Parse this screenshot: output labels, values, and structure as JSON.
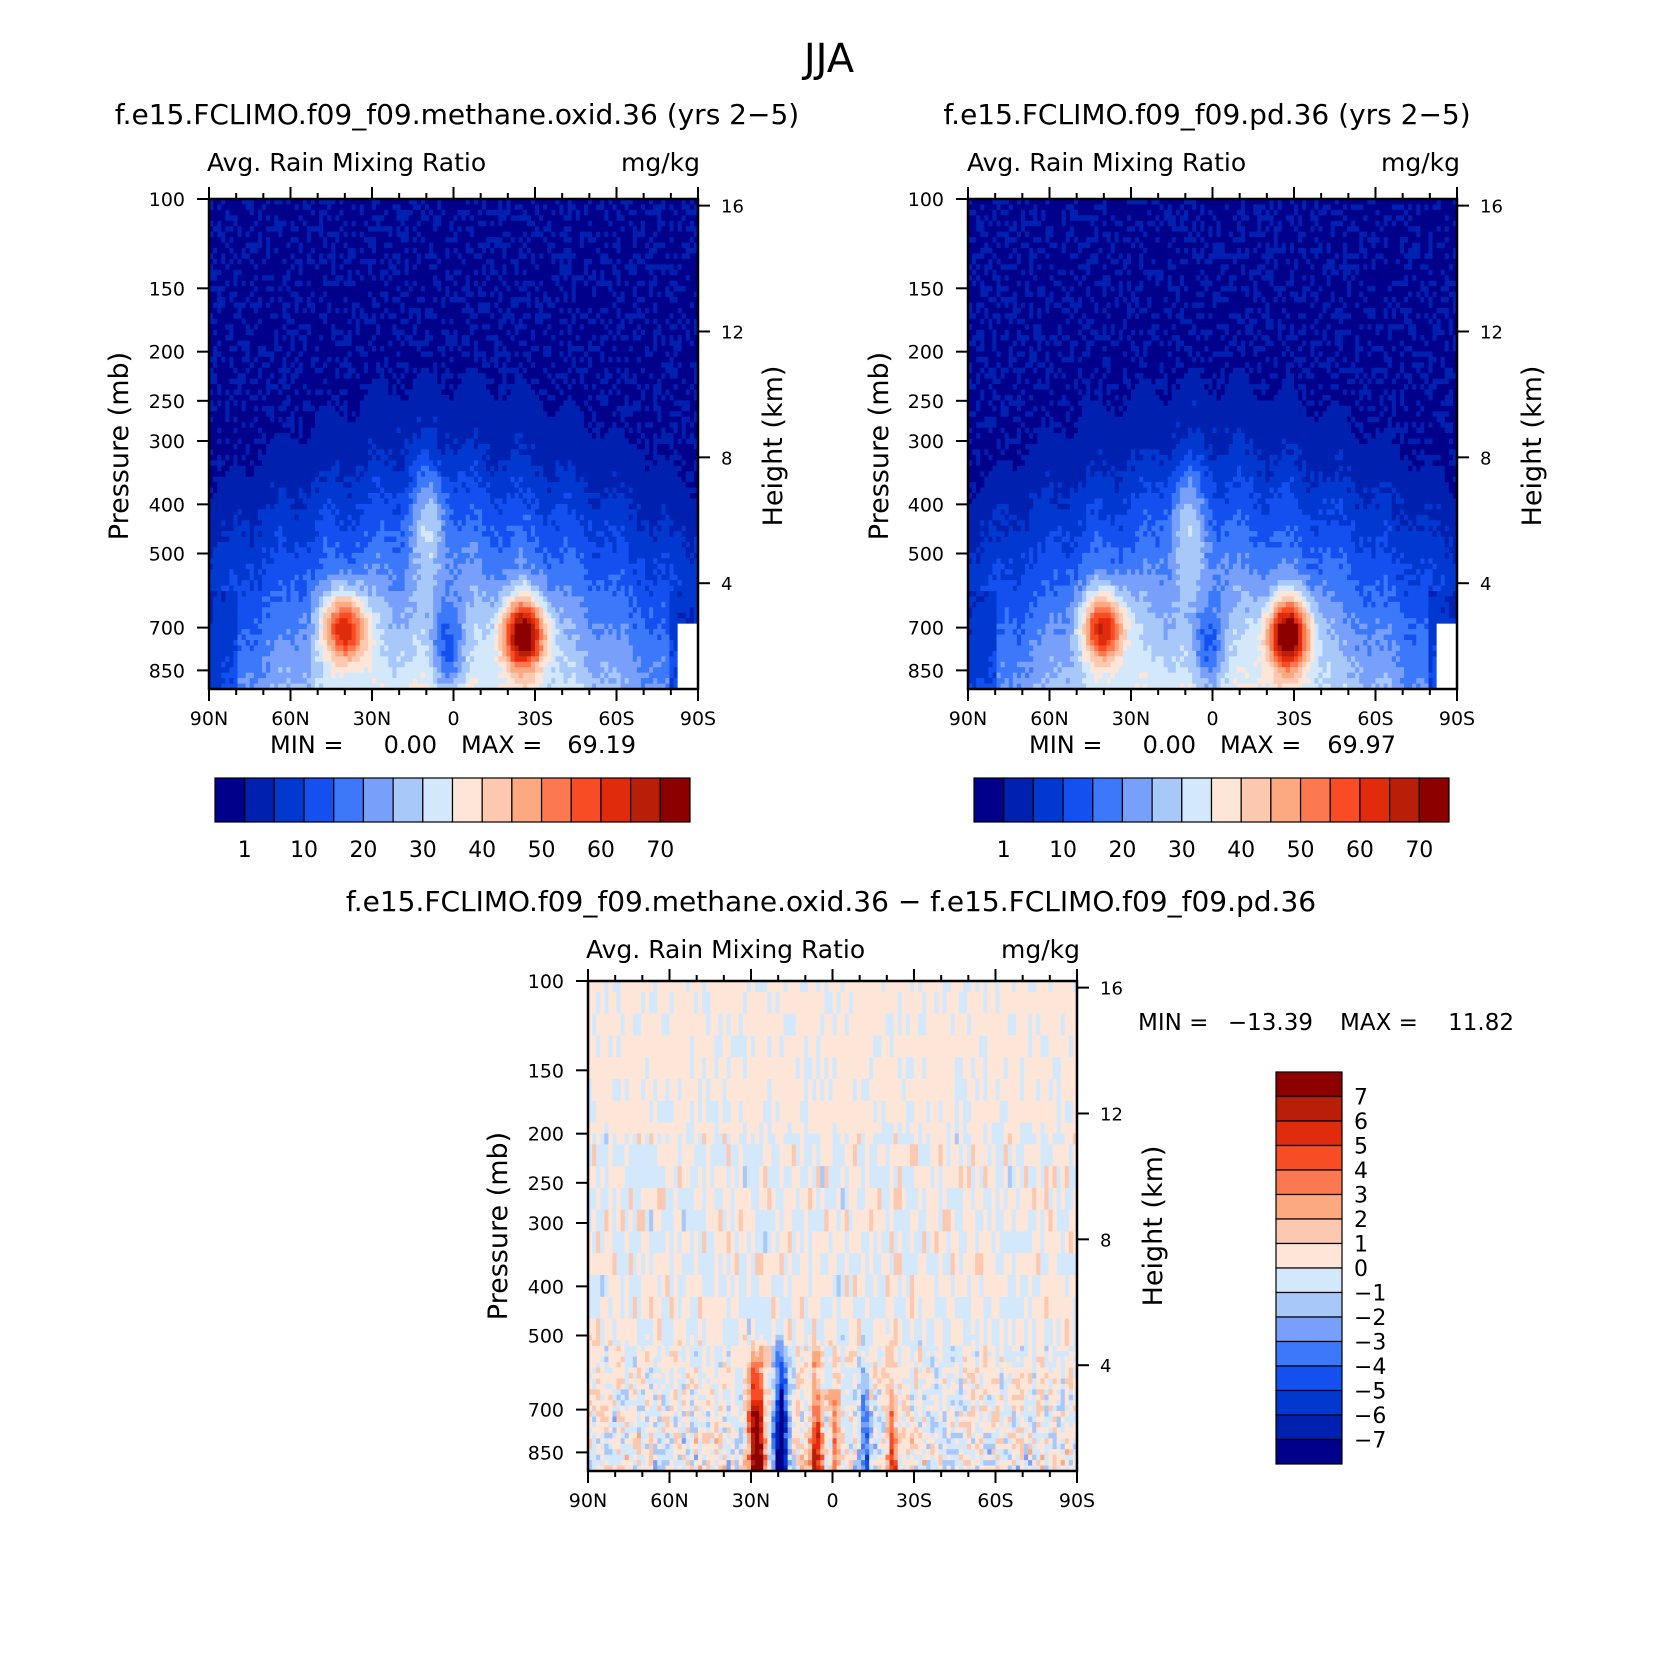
{
  "page": {
    "title": "JJA"
  },
  "colors": {
    "seq_scale": [
      "#00008a",
      "#0020b0",
      "#0038d0",
      "#1450f0",
      "#3c78fa",
      "#78a0fa",
      "#a8c8fa",
      "#d4e8fc",
      "#fde6d8",
      "#fcc8b0",
      "#fca880",
      "#fc7850",
      "#f84c24",
      "#e02c0c",
      "#b81e08",
      "#8c0000"
    ],
    "div_scale": [
      "#00008a",
      "#0020b0",
      "#0038d0",
      "#1450f0",
      "#3c78fa",
      "#78a0fa",
      "#a8c8fa",
      "#d4e8fc",
      "#fde6d8",
      "#fcc8b0",
      "#fca880",
      "#fc7850",
      "#f84c24",
      "#e02c0c",
      "#b81e08",
      "#8c0000"
    ]
  },
  "chart_data": [
    {
      "id": "panel1",
      "type": "heatmap",
      "title": "f.e15.FCLIMO.f09_f09.methane.oxid.36 (yrs 2−5)",
      "left_label": "Avg. Rain Mixing Ratio",
      "right_label": "mg/kg",
      "xlabel": "",
      "ylabel": "Pressure (mb)",
      "y2label": "Height (km)",
      "x_ticks": [
        "90N",
        "60N",
        "30N",
        "0",
        "30S",
        "60S",
        "90S"
      ],
      "y_ticks": [
        "100",
        "150",
        "200",
        "250",
        "300",
        "400",
        "500",
        "700",
        "850"
      ],
      "y2_ticks": [
        "16",
        "12",
        "8",
        "4"
      ],
      "stats": {
        "min_label": "MIN =",
        "min_value": "0.00",
        "max_label": "MAX =",
        "max_value": "69.19"
      },
      "colorbar_labels": [
        "1",
        "10",
        "20",
        "30",
        "40",
        "50",
        "60",
        "70"
      ],
      "maxima": [
        {
          "lat": 40,
          "p": 700,
          "value": 60
        },
        {
          "lat": -26,
          "p": 720,
          "value": 69.19
        }
      ]
    },
    {
      "id": "panel2",
      "type": "heatmap",
      "title": "f.e15.FCLIMO.f09_f09.pd.36 (yrs 2−5)",
      "left_label": "Avg. Rain Mixing Ratio",
      "right_label": "mg/kg",
      "xlabel": "",
      "ylabel": "Pressure (mb)",
      "y2label": "Height (km)",
      "x_ticks": [
        "90N",
        "60N",
        "30N",
        "0",
        "30S",
        "60S",
        "90S"
      ],
      "y_ticks": [
        "100",
        "150",
        "200",
        "250",
        "300",
        "400",
        "500",
        "700",
        "850"
      ],
      "y2_ticks": [
        "16",
        "12",
        "8",
        "4"
      ],
      "stats": {
        "min_label": "MIN =",
        "min_value": "0.00",
        "max_label": "MAX =",
        "max_value": "69.97"
      },
      "colorbar_labels": [
        "1",
        "10",
        "20",
        "30",
        "40",
        "50",
        "60",
        "70"
      ],
      "maxima": [
        {
          "lat": 40,
          "p": 700,
          "value": 60
        },
        {
          "lat": -28,
          "p": 720,
          "value": 69.97
        }
      ]
    },
    {
      "id": "panel3",
      "type": "heatmap",
      "title": "f.e15.FCLIMO.f09_f09.methane.oxid.36 − f.e15.FCLIMO.f09_f09.pd.36",
      "left_label": "Avg. Rain Mixing Ratio",
      "right_label": "mg/kg",
      "xlabel": "",
      "ylabel": "Pressure (mb)",
      "y2label": "Height (km)",
      "x_ticks": [
        "90N",
        "60N",
        "30N",
        "0",
        "30S",
        "60S",
        "90S"
      ],
      "y_ticks": [
        "100",
        "150",
        "200",
        "250",
        "300",
        "400",
        "500",
        "700",
        "850"
      ],
      "y2_ticks": [
        "16",
        "12",
        "8",
        "4"
      ],
      "stats": {
        "min_label": "MIN =",
        "min_value": "−13.39",
        "max_label": "MAX =",
        "max_value": "11.82"
      },
      "colorbar_labels": [
        "7",
        "6",
        "5",
        "4",
        "3",
        "2",
        "1",
        "0",
        "−1",
        "−2",
        "−3",
        "−4",
        "−5",
        "−6",
        "−7"
      ],
      "extrema": [
        {
          "lat": 28,
          "p": 720,
          "value": 11.82
        },
        {
          "lat": 19,
          "p": 720,
          "value": -13.39
        }
      ]
    }
  ]
}
